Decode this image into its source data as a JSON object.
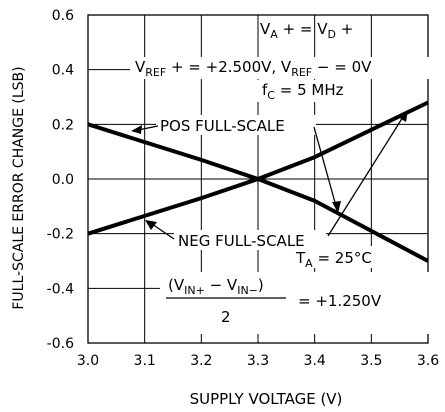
{
  "chart_data": {
    "type": "line",
    "xlabel": "SUPPLY VOLTAGE (V)",
    "ylabel": "FULL-SCALE ERROR CHANGE (LSB)",
    "xlim": [
      3.0,
      3.6
    ],
    "ylim": [
      -0.6,
      0.6
    ],
    "x_ticks": [
      "3.0",
      "3.1",
      "3.2",
      "3.3",
      "3.4",
      "3.5",
      "3.6"
    ],
    "y_ticks": [
      "0.6",
      "0.4",
      "0.2",
      "0.0",
      "-0.2",
      "-0.4",
      "-0.6"
    ],
    "grid": true,
    "series": [
      {
        "name": "POS FULL-SCALE",
        "x": [
          3.0,
          3.1,
          3.2,
          3.3,
          3.4,
          3.5,
          3.6
        ],
        "y": [
          0.2,
          0.135,
          0.07,
          0.0,
          -0.08,
          -0.19,
          -0.3
        ]
      },
      {
        "name": "NEG FULL-SCALE",
        "x": [
          3.0,
          3.1,
          3.2,
          3.3,
          3.4,
          3.5,
          3.6
        ],
        "y": [
          -0.2,
          -0.135,
          -0.07,
          0.0,
          0.08,
          0.18,
          0.28
        ]
      }
    ],
    "conditions": {
      "supply": "V_A+ = V_D+",
      "vref": "V_REF+ = +2.500V, V_REF- = 0V",
      "fc": "f_C = 5 MHz",
      "ta": "T_A = 25°C",
      "vin": "(V_IN+ - V_IN-) / 2 = +1.250V"
    }
  }
}
